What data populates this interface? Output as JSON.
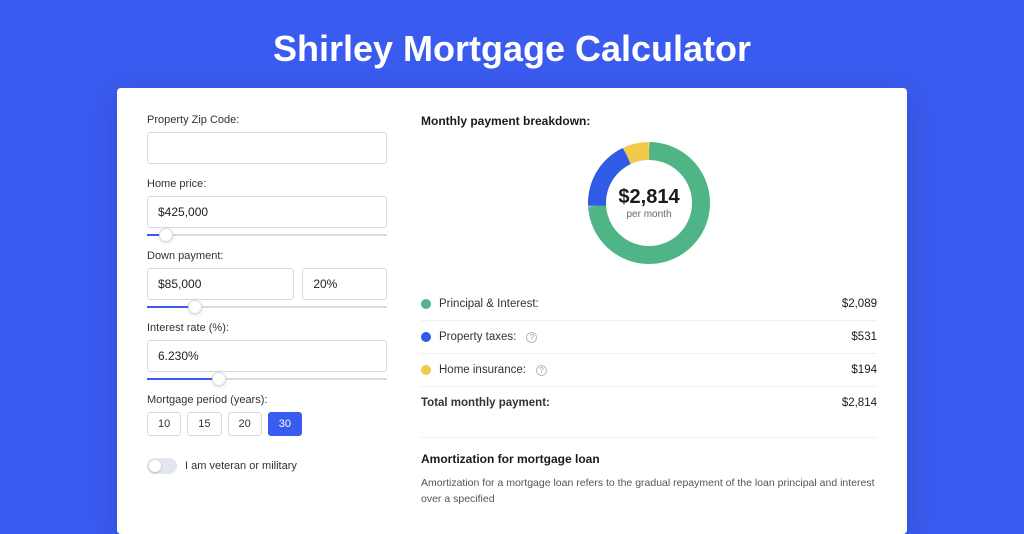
{
  "page": {
    "title": "Shirley Mortgage Calculator",
    "background_color": "#3a5bef"
  },
  "form": {
    "zip": {
      "label": "Property Zip Code:",
      "value": ""
    },
    "home_price": {
      "label": "Home price:",
      "value": "$425,000",
      "slider_pct": 8
    },
    "down_payment": {
      "label": "Down payment:",
      "amount": "$85,000",
      "percent": "20%",
      "slider_pct": 20
    },
    "interest_rate": {
      "label": "Interest rate (%):",
      "value": "6.230%",
      "slider_pct": 30
    },
    "period": {
      "label": "Mortgage period (years):",
      "options": [
        "10",
        "15",
        "20",
        "30"
      ],
      "selected_index": 3
    },
    "veteran": {
      "label": "I am veteran or military",
      "checked": false
    }
  },
  "breakdown": {
    "title": "Monthly payment breakdown:",
    "center_amount": "$2,814",
    "center_sub": "per month",
    "items": [
      {
        "label": "Principal & Interest:",
        "value": "$2,089",
        "color": "#4fb587",
        "has_info": false
      },
      {
        "label": "Property taxes:",
        "value": "$531",
        "color": "#2f5be7",
        "has_info": true
      },
      {
        "label": "Home insurance:",
        "value": "$194",
        "color": "#f3c94b",
        "has_info": true
      }
    ],
    "total": {
      "label": "Total monthly payment:",
      "value": "$2,814"
    },
    "donut": {
      "slices": [
        {
          "color": "#4fb587",
          "start": 0,
          "sweep": 267
        },
        {
          "color": "#2f5be7",
          "start": 267,
          "sweep": 68
        },
        {
          "color": "#f3c94b",
          "start": 335,
          "sweep": 25
        }
      ],
      "thickness": 18,
      "radius": 52
    }
  },
  "amortization": {
    "title": "Amortization for mortgage loan",
    "text": "Amortization for a mortgage loan refers to the gradual repayment of the loan principal and interest over a specified"
  }
}
